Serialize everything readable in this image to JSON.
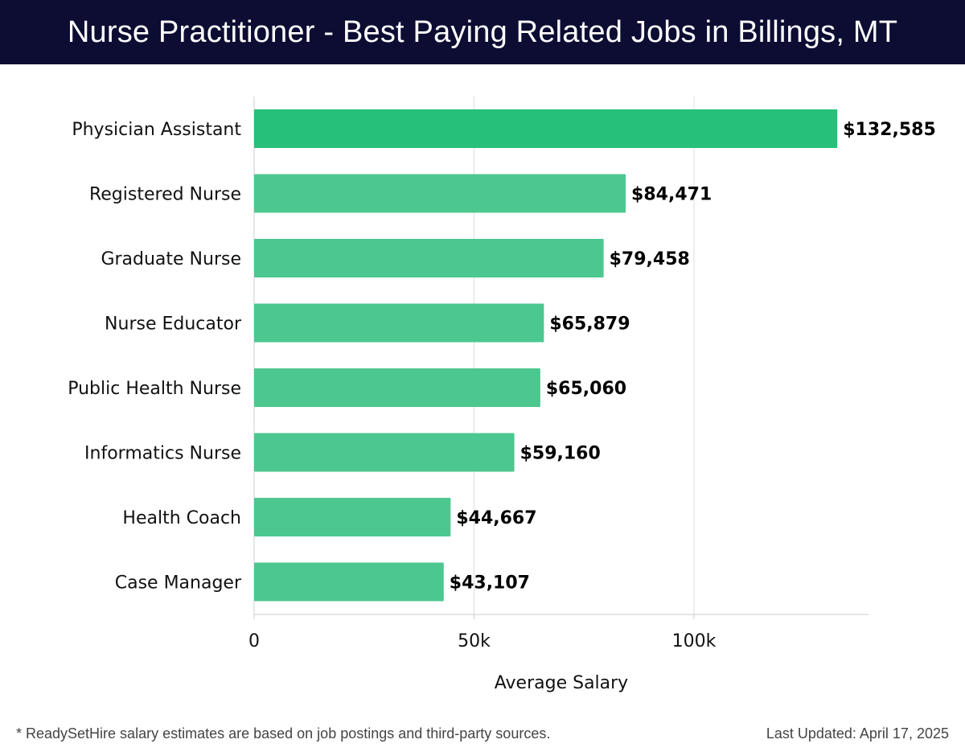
{
  "header": {
    "title": "Nurse Practitioner - Best Paying Related Jobs in Billings, MT"
  },
  "footer": {
    "note": "* ReadySetHire salary estimates are based on job postings and third-party sources.",
    "updated": "Last Updated: April 17, 2025"
  },
  "colors": {
    "header_bg": "#0d0d33",
    "bar_top": "#27c07a",
    "bar": "#4cc78f",
    "grid": "#dddddd"
  },
  "chart_data": {
    "type": "bar",
    "orientation": "horizontal",
    "categories": [
      "Physician Assistant",
      "Registered Nurse",
      "Graduate Nurse",
      "Nurse Educator",
      "Public Health Nurse",
      "Informatics Nurse",
      "Health Coach",
      "Case Manager"
    ],
    "values": [
      132585,
      84471,
      79458,
      65879,
      65060,
      59160,
      44667,
      43107
    ],
    "value_labels": [
      "$132,585",
      "$84,471",
      "$79,458",
      "$65,879",
      "$65,060",
      "$59,160",
      "$44,667",
      "$43,107"
    ],
    "xlabel": "Average Salary",
    "ylabel": "",
    "xlim": [
      0,
      140000
    ],
    "xticks": [
      0,
      50000,
      100000
    ],
    "xtick_labels": [
      "0",
      "50k",
      "100k"
    ],
    "grid": "vertical"
  }
}
